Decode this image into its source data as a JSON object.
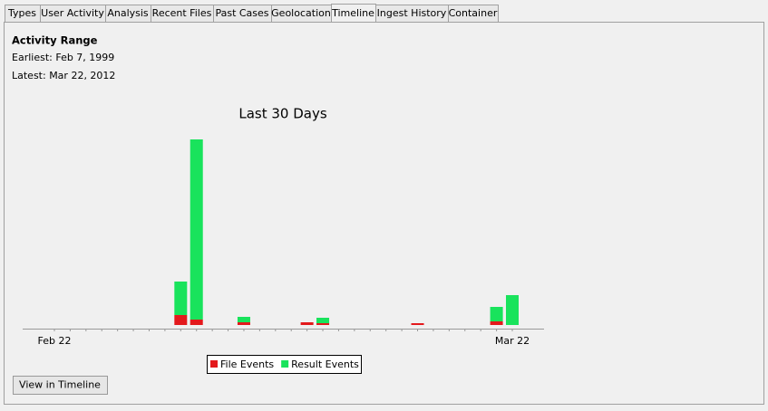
{
  "tabs": [
    "Types",
    "User Activity",
    "Analysis",
    "Recent Files",
    "Past Cases",
    "Geolocation",
    "Timeline",
    "Ingest History",
    "Container"
  ],
  "selected_tab": "Timeline",
  "activity_range": {
    "title": "Activity Range",
    "earliest": "Earliest: Feb 7, 1999",
    "latest": "Latest: Mar 22, 2012"
  },
  "chart_data": {
    "type": "stacked-bar",
    "title": "Last 30 Days",
    "categories": [
      "Feb 22",
      null,
      null,
      null,
      null,
      null,
      null,
      null,
      null,
      null,
      null,
      null,
      null,
      null,
      null,
      null,
      null,
      null,
      null,
      null,
      null,
      null,
      null,
      null,
      null,
      null,
      null,
      null,
      null,
      "Mar 22"
    ],
    "series": [
      {
        "name": "File Events",
        "color": "#e3191c",
        "values": [
          0,
          0,
          0,
          0,
          0,
          0,
          0,
          0,
          11,
          6,
          0,
          0,
          3,
          0,
          0,
          0,
          3,
          2,
          0,
          0,
          0,
          0,
          0,
          2,
          0,
          0,
          0,
          0,
          4,
          0
        ]
      },
      {
        "name": "Result Events",
        "color": "#19e35c",
        "values": [
          0,
          0,
          0,
          0,
          0,
          0,
          0,
          0,
          37,
          199,
          0,
          0,
          6,
          0,
          0,
          0,
          0,
          6,
          0,
          0,
          0,
          0,
          0,
          0,
          0,
          0,
          0,
          0,
          16,
          33
        ]
      }
    ],
    "ylim": [
      0,
      210
    ]
  },
  "button": "View in Timeline"
}
